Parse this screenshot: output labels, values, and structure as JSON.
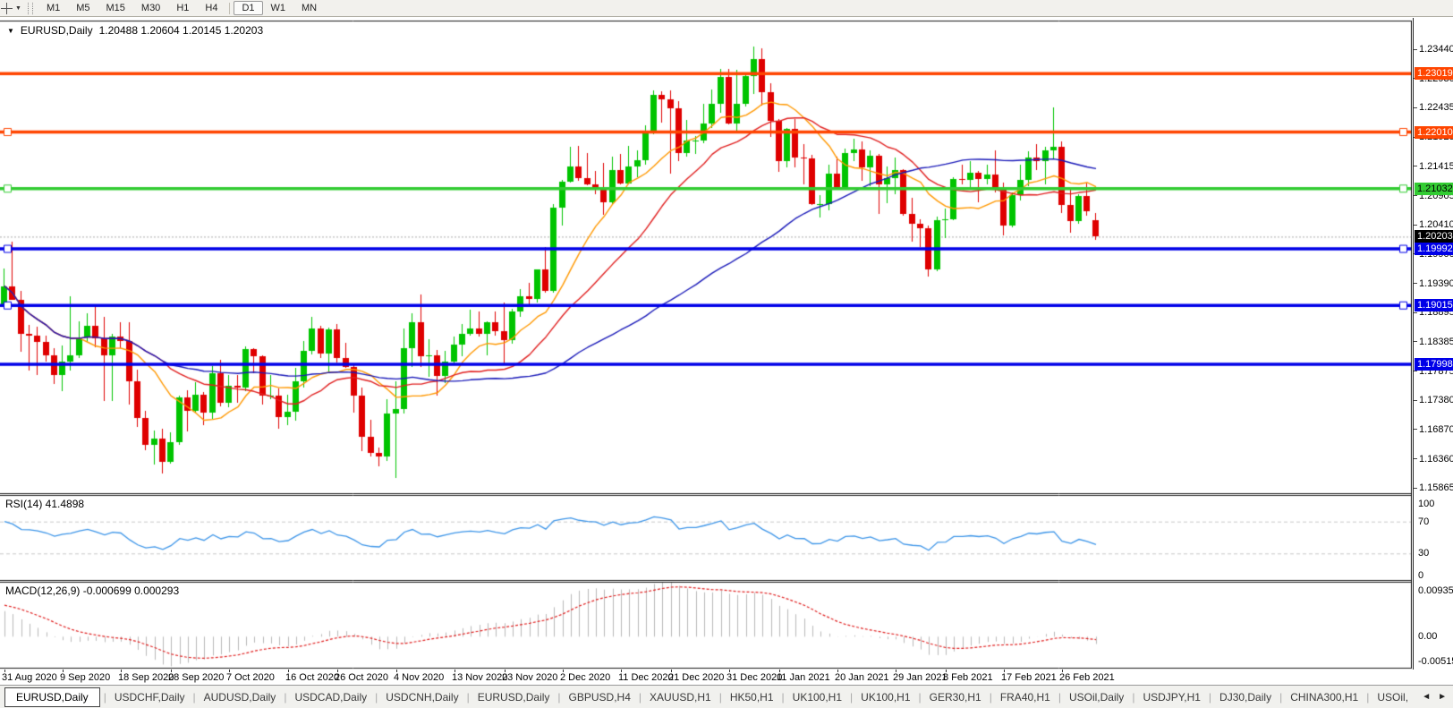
{
  "toolbar": {
    "tool_icon": "crosshair-cursor",
    "dropdown_icon": "▼",
    "timeframes": [
      "M1",
      "M5",
      "M15",
      "M30",
      "H1",
      "H4",
      "D1",
      "W1",
      "MN"
    ],
    "active_timeframe": "D1"
  },
  "chart_header": {
    "menu_icon": "▼",
    "symbol_period": "EURUSD,Daily",
    "ohlc_text": "1.20488 1.20604 1.20145 1.20203"
  },
  "indicators": {
    "rsi_label": "RSI(14) 41.4898",
    "macd_label": "MACD(12,26,9) -0.000699 0.000293"
  },
  "price_axis": {
    "ticks": [
      "1.23440",
      "1.22930",
      "1.22435",
      "1.21925",
      "1.21415",
      "1.20905",
      "1.20410",
      "1.19900",
      "1.19390",
      "1.18895",
      "1.18385",
      "1.17875",
      "1.17380",
      "1.16870",
      "1.16360",
      "1.15865"
    ]
  },
  "rsi_axis": [
    [
      "100",
      100
    ],
    [
      "70",
      70
    ],
    [
      "30",
      30
    ],
    [
      "0",
      0
    ]
  ],
  "macd_axis": [
    [
      "0.009354",
      0.009354
    ],
    [
      "0.00",
      0
    ],
    [
      "-0.005156",
      -0.005156
    ]
  ],
  "date_axis": [
    "31 Aug 2020",
    "9 Sep 2020",
    "18 Sep 2020",
    "28 Sep 2020",
    "7 Oct 2020",
    "16 Oct 2020",
    "26 Oct 2020",
    "4 Nov 2020",
    "13 Nov 2020",
    "23 Nov 2020",
    "2 Dec 2020",
    "11 Dec 2020",
    "21 Dec 2020",
    "31 Dec 2020",
    "11 Jan 2021",
    "20 Jan 2021",
    "29 Jan 2021",
    "8 Feb 2021",
    "17 Feb 2021",
    "26 Feb 2021"
  ],
  "tabs": {
    "items": [
      "EURUSD,Daily",
      "USDCHF,Daily",
      "AUDUSD,Daily",
      "USDCAD,Daily",
      "USDCNH,Daily",
      "EURUSD,Daily",
      "GBPUSD,H4",
      "XAUUSD,H1",
      "HK50,H1",
      "UK100,H1",
      "UK100,H1",
      "GER30,H1",
      "FRA40,H1",
      "USOil,Daily",
      "USDJPY,H1",
      "DJ30,Daily",
      "CHINA300,H1",
      "USOil,"
    ],
    "active_index": 0,
    "scroll_left_icon": "◄",
    "scroll_right_icon": "►"
  },
  "chart_data": {
    "type": "candlestick",
    "symbol": "EURUSD",
    "timeframe": "Daily",
    "last_ohlc": {
      "open": 1.20488,
      "high": 1.20604,
      "low": 1.20145,
      "close": 1.20203
    },
    "up_color": "#00C400",
    "down_color": "#DF0000",
    "y_axis": {
      "max_tick": 1.2344,
      "min_tick": 1.15865,
      "ticks": [
        1.2344,
        1.2293,
        1.22435,
        1.21925,
        1.21415,
        1.20905,
        1.2041,
        1.199,
        1.1939,
        1.18895,
        1.18385,
        1.17875,
        1.1738,
        1.1687,
        1.1636,
        1.15865
      ]
    },
    "x_labels": [
      "31 Aug 2020",
      "9 Sep 2020",
      "18 Sep 2020",
      "28 Sep 2020",
      "7 Oct 2020",
      "16 Oct 2020",
      "26 Oct 2020",
      "4 Nov 2020",
      "13 Nov 2020",
      "23 Nov 2020",
      "2 Dec 2020",
      "11 Dec 2020",
      "21 Dec 2020",
      "31 Dec 2020",
      "11 Jan 2021",
      "20 Jan 2021",
      "29 Jan 2021",
      "8 Feb 2021",
      "17 Feb 2021",
      "26 Feb 2021"
    ],
    "x_label_indices": [
      0,
      7,
      14,
      20,
      27,
      34,
      40,
      47,
      54,
      60,
      67,
      74,
      80,
      87,
      93,
      100,
      107,
      113,
      120,
      127
    ],
    "moving_averages": [
      {
        "period": 10,
        "color": "#FF9800"
      },
      {
        "period": 20,
        "color": "#E02020"
      },
      {
        "period": 50,
        "color": "#1919B8"
      }
    ],
    "horizontal_levels": [
      {
        "price": 1.23019,
        "label": "1.23019",
        "color": "#FF4500",
        "text_color": "#ffffff",
        "selected": false
      },
      {
        "price": 1.2201,
        "label": "1.22010",
        "color": "#FF4500",
        "text_color": "#ffffff",
        "selected": true
      },
      {
        "price": 1.21032,
        "label": "1.21032",
        "color": "#33CC33",
        "text_color": "#000000",
        "selected": true
      },
      {
        "price": 1.19992,
        "label": "1.19992",
        "color": "#0000E8",
        "text_color": "#ffffff",
        "selected": true
      },
      {
        "price": 1.19015,
        "label": "1.19015",
        "color": "#0000E8",
        "text_color": "#ffffff",
        "selected": true
      },
      {
        "price": 1.17998,
        "label": "1.17998",
        "color": "#0000E8",
        "text_color": "#ffffff",
        "selected": false
      }
    ],
    "current_price": {
      "price": 1.20203,
      "label": "1.20203",
      "badge_color": "#000000",
      "text_color": "#ffffff",
      "line_color": "#aaaaaa"
    },
    "rsi": {
      "period": 14,
      "value": 41.4898,
      "levels": [
        70,
        30
      ],
      "range": [
        0,
        100
      ],
      "color": "#3D95E8"
    },
    "macd": {
      "fast": 12,
      "slow": 26,
      "signal": 9,
      "main_value": -0.000699,
      "signal_value": 0.000293,
      "range": [
        -0.005156,
        0.009354
      ],
      "histogram_color": "#B9B9B9",
      "signal_color": "#E02020"
    },
    "candles": [
      [
        1.1904,
        1.1965,
        1.1898,
        1.1935
      ],
      [
        1.1935,
        1.2011,
        1.193,
        1.1911
      ],
      [
        1.1911,
        1.1927,
        1.1822,
        1.1853
      ],
      [
        1.1853,
        1.1868,
        1.1789,
        1.185
      ],
      [
        1.185,
        1.1865,
        1.1781,
        1.1838
      ],
      [
        1.1838,
        1.1849,
        1.1805,
        1.1816
      ],
      [
        1.1816,
        1.1827,
        1.1766,
        1.1781
      ],
      [
        1.1781,
        1.1833,
        1.1753,
        1.1804
      ],
      [
        1.1804,
        1.1917,
        1.1789,
        1.1815
      ],
      [
        1.1815,
        1.1874,
        1.181,
        1.1846
      ],
      [
        1.1846,
        1.1888,
        1.1838,
        1.1867
      ],
      [
        1.1867,
        1.1901,
        1.1829,
        1.1845
      ],
      [
        1.1845,
        1.1882,
        1.1737,
        1.1816
      ],
      [
        1.1816,
        1.1852,
        1.1736,
        1.1847
      ],
      [
        1.1847,
        1.1872,
        1.1827,
        1.184
      ],
      [
        1.184,
        1.1872,
        1.1731,
        1.1771
      ],
      [
        1.1771,
        1.179,
        1.1692,
        1.1707
      ],
      [
        1.1707,
        1.1719,
        1.1651,
        1.1661
      ],
      [
        1.1661,
        1.1686,
        1.1626,
        1.1672
      ],
      [
        1.1672,
        1.1688,
        1.1612,
        1.1631
      ],
      [
        1.1631,
        1.1683,
        1.1628,
        1.1665
      ],
      [
        1.1665,
        1.1745,
        1.1661,
        1.1742
      ],
      [
        1.1742,
        1.1755,
        1.1684,
        1.172
      ],
      [
        1.172,
        1.1769,
        1.1717,
        1.1748
      ],
      [
        1.1748,
        1.1752,
        1.1695,
        1.1716
      ],
      [
        1.1716,
        1.1797,
        1.1705,
        1.1784
      ],
      [
        1.1784,
        1.1807,
        1.1727,
        1.1734
      ],
      [
        1.1734,
        1.1782,
        1.1725,
        1.1763
      ],
      [
        1.1763,
        1.1781,
        1.1733,
        1.1759
      ],
      [
        1.1759,
        1.1831,
        1.1754,
        1.1826
      ],
      [
        1.1826,
        1.1827,
        1.1785,
        1.1813
      ],
      [
        1.1813,
        1.1815,
        1.1731,
        1.1745
      ],
      [
        1.1745,
        1.1782,
        1.174,
        1.1746
      ],
      [
        1.1746,
        1.1758,
        1.1688,
        1.1708
      ],
      [
        1.1708,
        1.1747,
        1.1694,
        1.1718
      ],
      [
        1.1718,
        1.1794,
        1.1703,
        1.177
      ],
      [
        1.177,
        1.184,
        1.176,
        1.1823
      ],
      [
        1.1823,
        1.1881,
        1.1817,
        1.1862
      ],
      [
        1.1862,
        1.1866,
        1.1811,
        1.1818
      ],
      [
        1.1818,
        1.1863,
        1.1787,
        1.186
      ],
      [
        1.186,
        1.187,
        1.1803,
        1.181
      ],
      [
        1.181,
        1.1837,
        1.1793,
        1.1795
      ],
      [
        1.1795,
        1.18,
        1.1717,
        1.1746
      ],
      [
        1.1746,
        1.1759,
        1.165,
        1.1674
      ],
      [
        1.1674,
        1.1704,
        1.164,
        1.1647
      ],
      [
        1.1647,
        1.1656,
        1.1623,
        1.164
      ],
      [
        1.164,
        1.174,
        1.1633,
        1.1715
      ],
      [
        1.1715,
        1.177,
        1.1603,
        1.1723
      ],
      [
        1.1723,
        1.1861,
        1.1715,
        1.1828
      ],
      [
        1.1828,
        1.1888,
        1.1795,
        1.1873
      ],
      [
        1.1873,
        1.192,
        1.1795,
        1.1813
      ],
      [
        1.1813,
        1.1843,
        1.1778,
        1.1815
      ],
      [
        1.1815,
        1.1824,
        1.1745,
        1.1779
      ],
      [
        1.1779,
        1.1823,
        1.1767,
        1.1805
      ],
      [
        1.1805,
        1.1847,
        1.1799,
        1.1834
      ],
      [
        1.1834,
        1.1869,
        1.1814,
        1.1852
      ],
      [
        1.1852,
        1.1894,
        1.185,
        1.1862
      ],
      [
        1.1862,
        1.1891,
        1.1848,
        1.1853
      ],
      [
        1.1853,
        1.1874,
        1.1815,
        1.1873
      ],
      [
        1.1873,
        1.1891,
        1.1849,
        1.1857
      ],
      [
        1.1857,
        1.1906,
        1.18,
        1.1842
      ],
      [
        1.1842,
        1.1895,
        1.1836,
        1.1891
      ],
      [
        1.1891,
        1.1929,
        1.1881,
        1.1917
      ],
      [
        1.1917,
        1.1941,
        1.1904,
        1.1913
      ],
      [
        1.1913,
        1.1963,
        1.1907,
        1.1963
      ],
      [
        1.1963,
        1.2003,
        1.1923,
        1.1927
      ],
      [
        1.1927,
        1.2076,
        1.1923,
        1.2071
      ],
      [
        1.2071,
        1.2118,
        1.204,
        1.2115
      ],
      [
        1.2115,
        1.2175,
        1.2113,
        1.2142
      ],
      [
        1.2142,
        1.2177,
        1.2116,
        1.2121
      ],
      [
        1.2121,
        1.2165,
        1.2109,
        1.211
      ],
      [
        1.211,
        1.2134,
        1.2094,
        1.2106
      ],
      [
        1.2106,
        1.2147,
        1.2058,
        1.208
      ],
      [
        1.208,
        1.2159,
        1.2076,
        1.2135
      ],
      [
        1.2135,
        1.2163,
        1.211,
        1.2112
      ],
      [
        1.2112,
        1.2177,
        1.211,
        1.2141
      ],
      [
        1.2141,
        1.2169,
        1.2123,
        1.2153
      ],
      [
        1.2153,
        1.2212,
        1.2145,
        1.2199
      ],
      [
        1.2199,
        1.2273,
        1.2197,
        1.2265
      ],
      [
        1.2265,
        1.2272,
        1.2217,
        1.2257
      ],
      [
        1.2257,
        1.2273,
        1.2129,
        1.2242
      ],
      [
        1.2242,
        1.2255,
        1.2151,
        1.2164
      ],
      [
        1.2164,
        1.2222,
        1.2158,
        1.2187
      ],
      [
        1.2187,
        1.2194,
        1.2163,
        1.2187
      ],
      [
        1.2187,
        1.225,
        1.2181,
        1.2215
      ],
      [
        1.2215,
        1.2274,
        1.2208,
        1.2249
      ],
      [
        1.2249,
        1.231,
        1.2234,
        1.2296
      ],
      [
        1.2296,
        1.231,
        1.2214,
        1.2216
      ],
      [
        1.2216,
        1.2309,
        1.2203,
        1.2249
      ],
      [
        1.2249,
        1.2304,
        1.2245,
        1.2297
      ],
      [
        1.2297,
        1.2349,
        1.2266,
        1.2327
      ],
      [
        1.2327,
        1.2345,
        1.2246,
        1.227
      ],
      [
        1.227,
        1.2285,
        1.2193,
        1.222
      ],
      [
        1.222,
        1.2224,
        1.2132,
        1.2151
      ],
      [
        1.2151,
        1.2208,
        1.214,
        1.2206
      ],
      [
        1.2206,
        1.2223,
        1.214,
        1.2157
      ],
      [
        1.2157,
        1.218,
        1.2111,
        1.2155
      ],
      [
        1.2155,
        1.2161,
        1.2075,
        1.2076
      ],
      [
        1.2076,
        1.2092,
        1.2054,
        1.2077
      ],
      [
        1.2077,
        1.2145,
        1.2066,
        1.2129
      ],
      [
        1.2129,
        1.2158,
        1.2101,
        1.2105
      ],
      [
        1.2105,
        1.2173,
        1.2103,
        1.2165
      ],
      [
        1.2165,
        1.2189,
        1.2151,
        1.2171
      ],
      [
        1.2171,
        1.2184,
        1.2116,
        1.214
      ],
      [
        1.214,
        1.217,
        1.2108,
        1.216
      ],
      [
        1.216,
        1.2163,
        1.2059,
        1.211
      ],
      [
        1.211,
        1.2142,
        1.2078,
        1.2122
      ],
      [
        1.2122,
        1.2157,
        1.2093,
        1.2136
      ],
      [
        1.2136,
        1.2137,
        1.2056,
        1.206
      ],
      [
        1.206,
        1.2087,
        1.2011,
        1.2043
      ],
      [
        1.2043,
        1.205,
        1.2003,
        1.2035
      ],
      [
        1.2035,
        1.204,
        1.1952,
        1.1964
      ],
      [
        1.1964,
        1.2055,
        1.196,
        1.2048
      ],
      [
        1.2048,
        1.2069,
        1.2018,
        1.205
      ],
      [
        1.205,
        1.2123,
        1.2048,
        1.212
      ],
      [
        1.212,
        1.2145,
        1.211,
        1.2119
      ],
      [
        1.2119,
        1.215,
        1.2102,
        1.213
      ],
      [
        1.213,
        1.2134,
        1.208,
        1.212
      ],
      [
        1.212,
        1.2145,
        1.211,
        1.2128
      ],
      [
        1.2128,
        1.217,
        1.2096,
        1.2104
      ],
      [
        1.2104,
        1.2113,
        1.2023,
        1.204
      ],
      [
        1.204,
        1.2097,
        1.2036,
        1.2092
      ],
      [
        1.2092,
        1.2145,
        1.2082,
        1.2118
      ],
      [
        1.2118,
        1.2167,
        1.2107,
        1.2157
      ],
      [
        1.2157,
        1.218,
        1.2135,
        1.215
      ],
      [
        1.215,
        1.2176,
        1.211,
        1.2169
      ],
      [
        1.2169,
        1.2243,
        1.2155,
        1.2175
      ],
      [
        1.2175,
        1.2184,
        1.2061,
        1.2075
      ],
      [
        1.2075,
        1.2101,
        1.2027,
        1.2047
      ],
      [
        1.2047,
        1.2094,
        1.2043,
        1.209
      ],
      [
        1.209,
        1.2113,
        1.2057,
        1.2064
      ],
      [
        1.20488,
        1.20604,
        1.20145,
        1.20203
      ]
    ]
  }
}
